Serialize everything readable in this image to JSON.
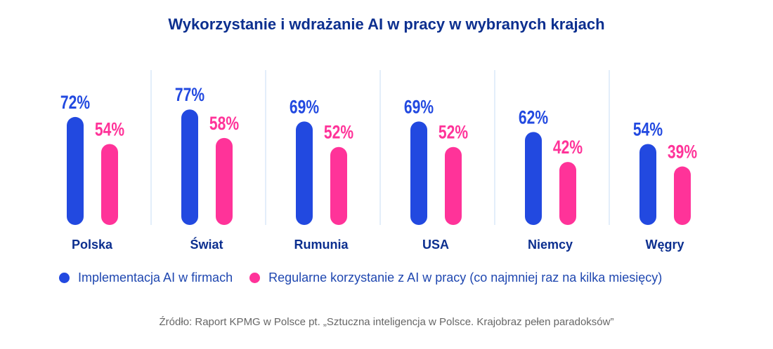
{
  "chart_data": {
    "type": "bar",
    "title": "Wykorzystanie i wdrażanie AI w pracy w wybranych krajach",
    "categories": [
      "Polska",
      "Świat",
      "Rumunia",
      "USA",
      "Niemcy",
      "Węgry"
    ],
    "series": [
      {
        "name": "Implementacja AI w firmach",
        "color": "#2249e0",
        "values": [
          72,
          77,
          69,
          69,
          62,
          54
        ]
      },
      {
        "name": "Regularne korzystanie z AI w pracy (co najmniej raz na kilka miesięcy)",
        "color": "#ff3399",
        "values": [
          54,
          58,
          52,
          52,
          42,
          39
        ]
      }
    ],
    "value_suffix": "%",
    "ylim": [
      0,
      100
    ],
    "grid": false,
    "legend_position": "bottom",
    "source": "Źródło: Raport KPMG w Polsce pt. „Sztuczna inteligencja w Polsce. Krajobraz pełen paradoksów”"
  },
  "colors": {
    "title": "#0c2f8f",
    "separator": "#e3eefa"
  }
}
